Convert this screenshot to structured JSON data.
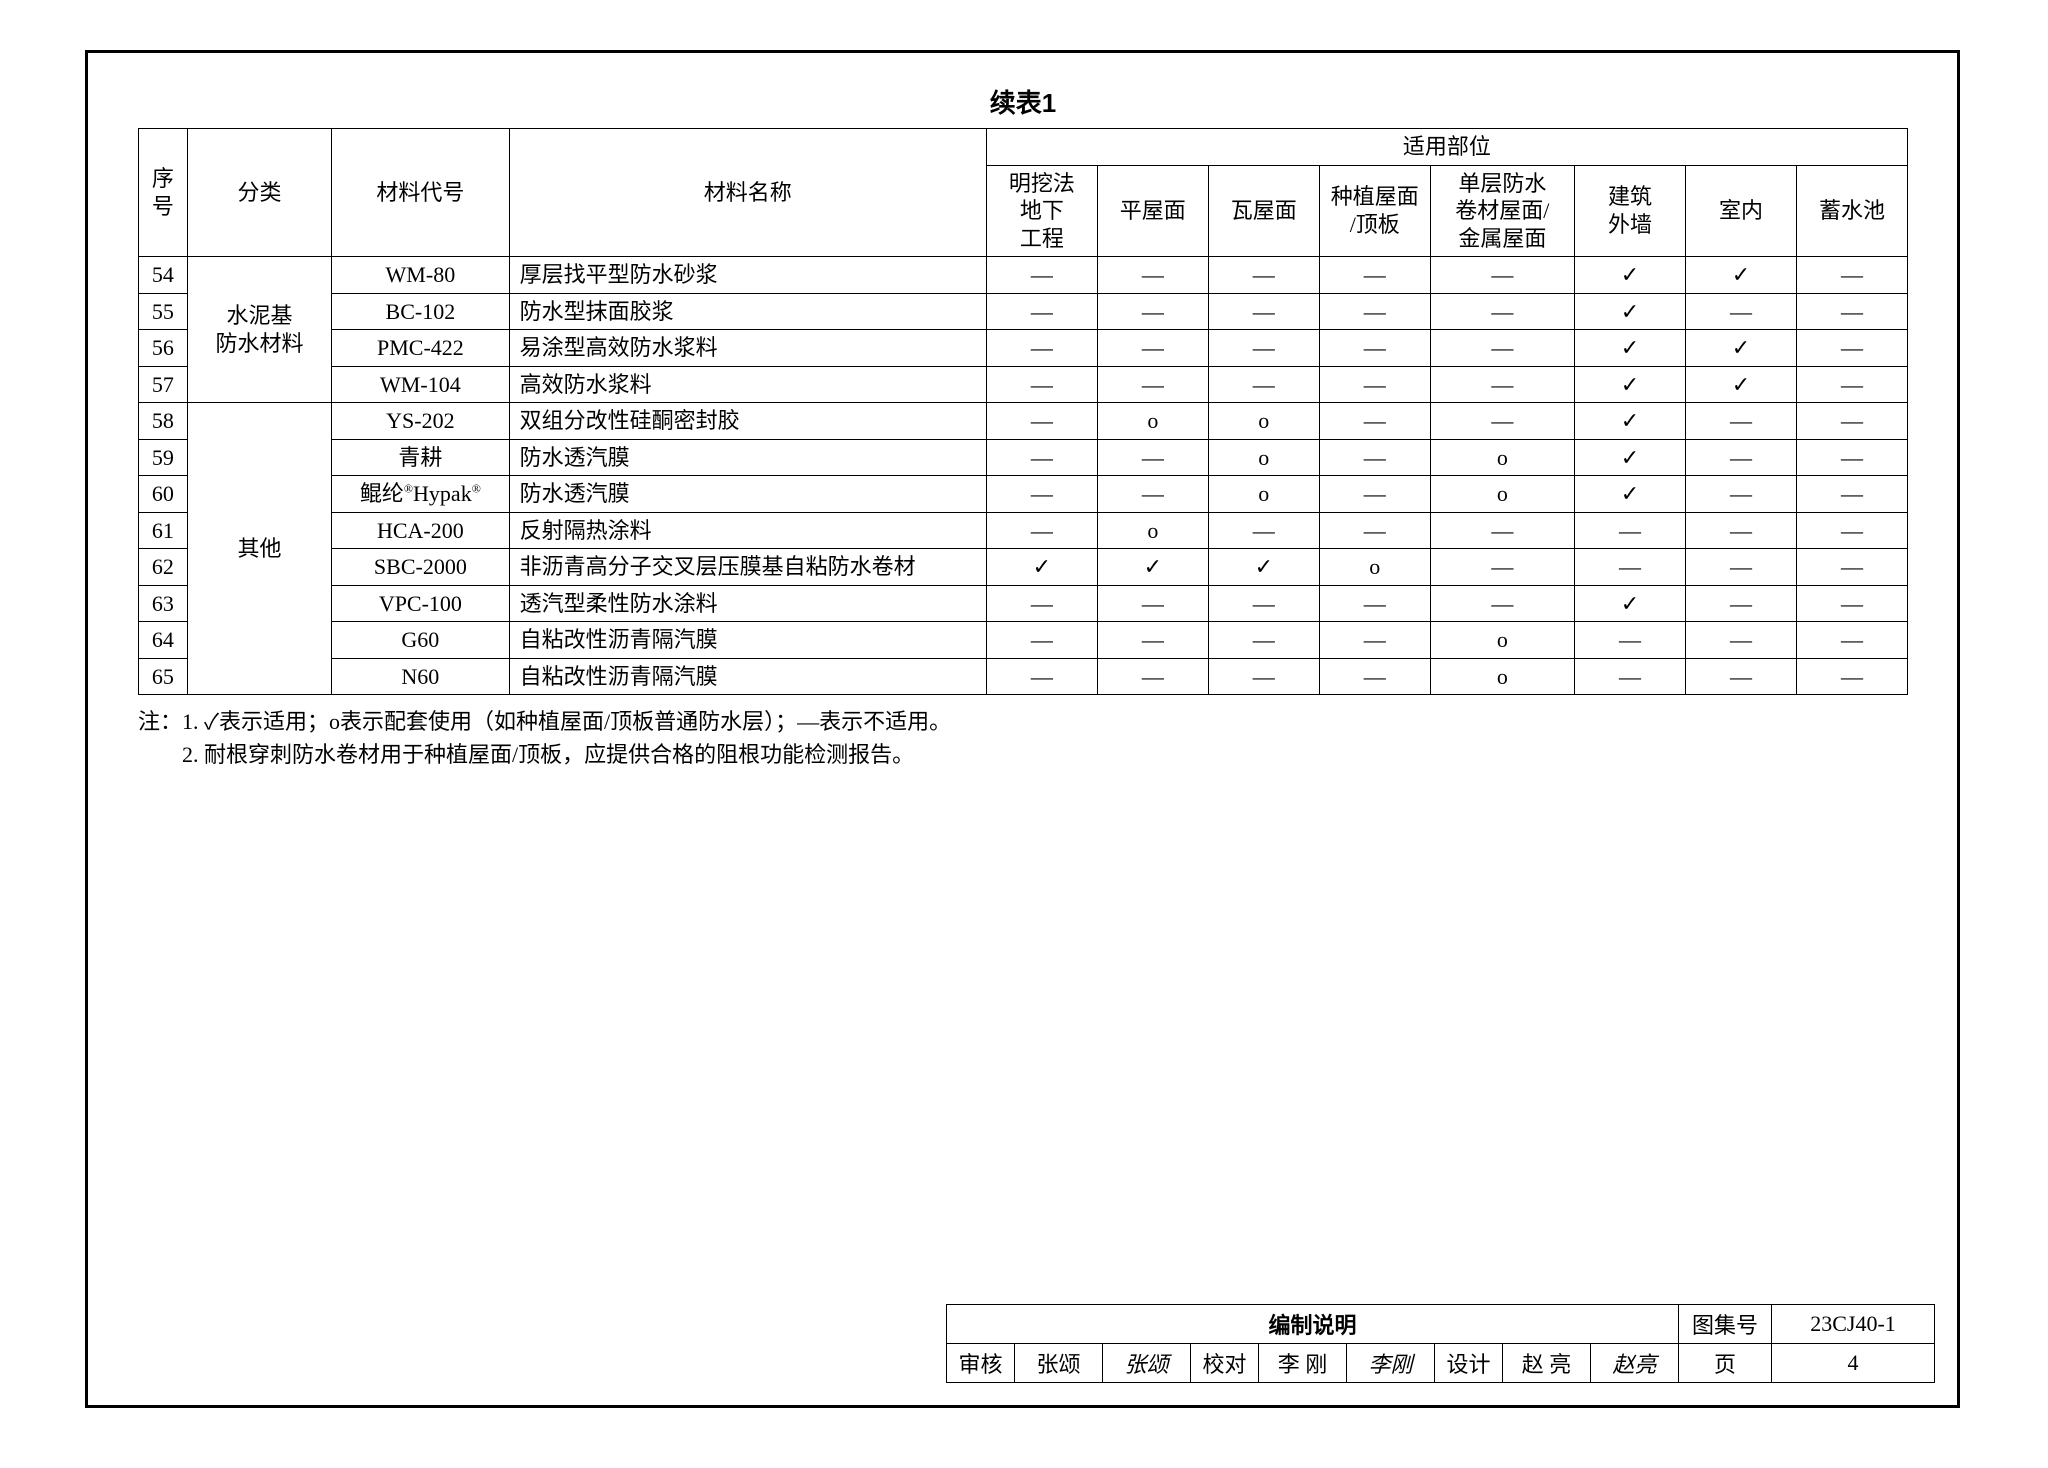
{
  "title": "续表1",
  "columns": {
    "seq": "序号",
    "category": "分类",
    "code": "材料代号",
    "name": "材料名称",
    "appGroup": "适用部位",
    "apps": [
      "明挖法地下工程",
      "平屋面",
      "瓦屋面",
      "种植屋面/顶板",
      "单层防水卷材屋面/金属屋面",
      "建筑外墙",
      "室内",
      "蓄水池"
    ]
  },
  "marks": {
    "check": "✓",
    "circle": "o",
    "dash": "—"
  },
  "groups": [
    {
      "category": "水泥基防水材料",
      "rows": [
        {
          "seq": "54",
          "code": "WM-80",
          "name": "厚层找平型防水砂浆",
          "cells": [
            "—",
            "—",
            "—",
            "—",
            "—",
            "✓",
            "✓",
            "—"
          ]
        },
        {
          "seq": "55",
          "code": "BC-102",
          "name": "防水型抹面胶浆",
          "cells": [
            "—",
            "—",
            "—",
            "—",
            "—",
            "✓",
            "—",
            "—"
          ]
        },
        {
          "seq": "56",
          "code": "PMC-422",
          "name": "易涂型高效防水浆料",
          "cells": [
            "—",
            "—",
            "—",
            "—",
            "—",
            "✓",
            "✓",
            "—"
          ]
        },
        {
          "seq": "57",
          "code": "WM-104",
          "name": "高效防水浆料",
          "cells": [
            "—",
            "—",
            "—",
            "—",
            "—",
            "✓",
            "✓",
            "—"
          ]
        }
      ]
    },
    {
      "category": "其他",
      "rows": [
        {
          "seq": "58",
          "code": "YS-202",
          "name": "双组分改性硅酮密封胶",
          "cells": [
            "—",
            "o",
            "o",
            "—",
            "—",
            "✓",
            "—",
            "—"
          ]
        },
        {
          "seq": "59",
          "code": "青耕",
          "name": "防水透汽膜",
          "cells": [
            "—",
            "—",
            "o",
            "—",
            "o",
            "✓",
            "—",
            "—"
          ]
        },
        {
          "seq": "60",
          "code": "鲲纶®Hypak®",
          "code_html": "鲲纶<sup>®</sup>Hypak<sup>®</sup>",
          "name": "防水透汽膜",
          "cells": [
            "—",
            "—",
            "o",
            "—",
            "o",
            "✓",
            "—",
            "—"
          ]
        },
        {
          "seq": "61",
          "code": "HCA-200",
          "name": "反射隔热涂料",
          "cells": [
            "—",
            "o",
            "—",
            "—",
            "—",
            "—",
            "—",
            "—"
          ]
        },
        {
          "seq": "62",
          "code": "SBC-2000",
          "name": "非沥青高分子交叉层压膜基自粘防水卷材",
          "cells": [
            "✓",
            "✓",
            "✓",
            "o",
            "—",
            "—",
            "—",
            "—"
          ]
        },
        {
          "seq": "63",
          "code": "VPC-100",
          "name": "透汽型柔性防水涂料",
          "cells": [
            "—",
            "—",
            "—",
            "—",
            "—",
            "✓",
            "—",
            "—"
          ]
        },
        {
          "seq": "64",
          "code": "G60",
          "name": "自粘改性沥青隔汽膜",
          "cells": [
            "—",
            "—",
            "—",
            "—",
            "o",
            "—",
            "—",
            "—"
          ]
        },
        {
          "seq": "65",
          "code": "N60",
          "name": "自粘改性沥青隔汽膜",
          "cells": [
            "—",
            "—",
            "—",
            "—",
            "o",
            "—",
            "—",
            "—"
          ]
        }
      ]
    }
  ],
  "notes": {
    "prefix": "注：",
    "items": [
      "1. ✓表示适用；o表示配套使用（如种植屋面/顶板普通防水层）；—表示不适用。",
      "2. 耐根穿刺防水卷材用于种植屋面/顶板，应提供合格的阻根功能检测报告。"
    ]
  },
  "titleblock": {
    "main": "编制说明",
    "atlasLabel": "图集号",
    "atlasNo": "23CJ40-1",
    "pageLabel": "页",
    "pageNo": "4",
    "review": {
      "lbl": "审核",
      "name": "张颂",
      "sig": "张颂"
    },
    "check": {
      "lbl": "校对",
      "name": "李 刚",
      "sig": "李刚"
    },
    "design": {
      "lbl": "设计",
      "name": "赵 亮",
      "sig": "赵亮"
    }
  }
}
